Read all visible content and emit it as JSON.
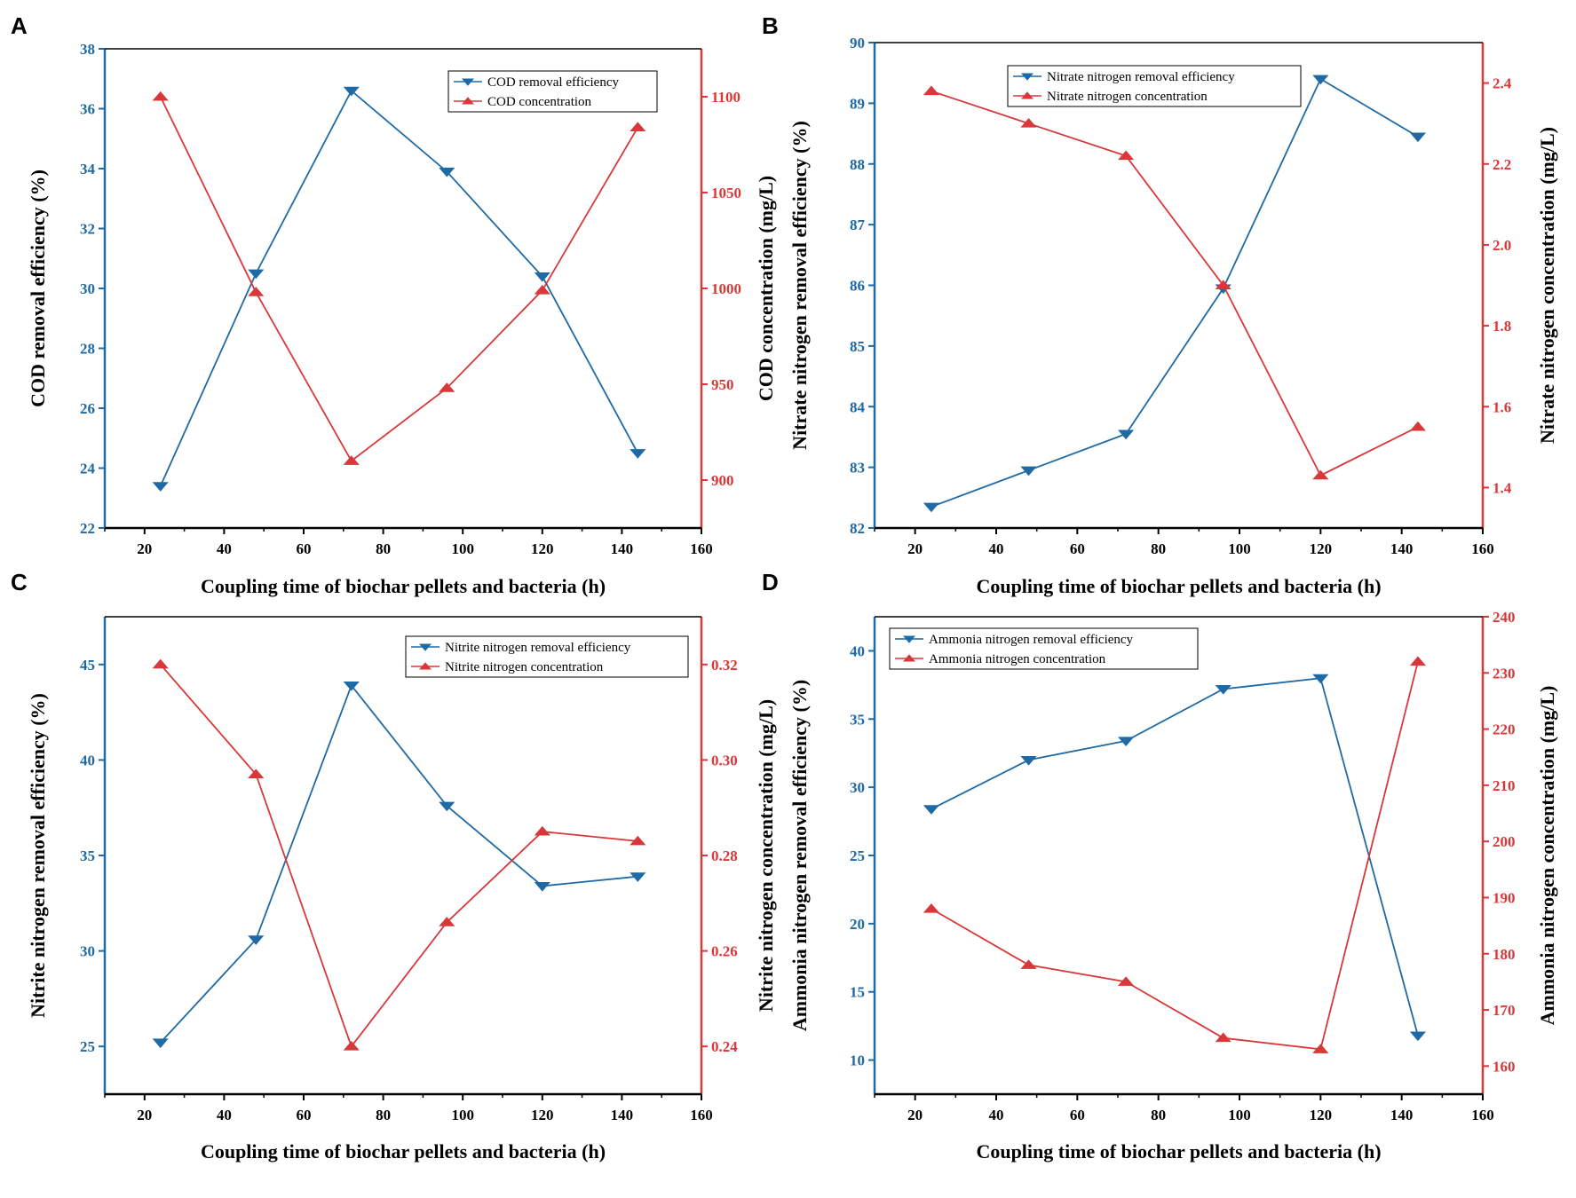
{
  "colors": {
    "left": "#1f6aa5",
    "right": "#d9383a",
    "axis": "#000000"
  },
  "chart_data": [
    {
      "panel": "A",
      "type": "line",
      "x": [
        24,
        48,
        72,
        96,
        120,
        144
      ],
      "xlim": [
        10,
        160
      ],
      "xticks": [
        20,
        40,
        60,
        80,
        100,
        120,
        140,
        160
      ],
      "xlabel": "Coupling time of biochar pellets and bacteria (h)",
      "ylabel_left": "COD removal efficiency (%)",
      "ylim_left": [
        22,
        38
      ],
      "yticks_left": [
        22,
        24,
        26,
        28,
        30,
        32,
        34,
        36,
        38
      ],
      "ylabel_right": "COD concentration (mg/L)",
      "ylim_right": [
        875,
        1125
      ],
      "yticks_right": [
        900,
        950,
        1000,
        1050,
        1100
      ],
      "legend_position": "top-right",
      "series": [
        {
          "name": "COD removal efficiency",
          "axis": "left",
          "marker": "down-triangle",
          "values": [
            23.4,
            30.5,
            36.6,
            33.9,
            30.4,
            24.5
          ]
        },
        {
          "name": "COD concentration",
          "axis": "right",
          "marker": "up-triangle",
          "values": [
            1100,
            998,
            910,
            948,
            999,
            1084
          ]
        }
      ]
    },
    {
      "panel": "B",
      "type": "line",
      "x": [
        24,
        48,
        72,
        96,
        120,
        144
      ],
      "xlim": [
        10,
        160
      ],
      "xticks": [
        20,
        40,
        60,
        80,
        100,
        120,
        140,
        160
      ],
      "xlabel": "Coupling time of biochar pellets and bacteria (h)",
      "ylabel_left": "Nitrate nitrogen removal efficiency (%)",
      "ylim_left": [
        82,
        90
      ],
      "yticks_left": [
        82,
        83,
        84,
        85,
        86,
        87,
        88,
        89,
        90
      ],
      "ylabel_right": "Nitrate nitrogen concentration (mg/L)",
      "ylim_right": [
        1.3,
        2.5
      ],
      "yticks_right": [
        1.4,
        1.6,
        1.8,
        2.0,
        2.2,
        2.4
      ],
      "legend_position": "top-right",
      "series": [
        {
          "name": "Nitrate nitrogen removal efficiency",
          "axis": "left",
          "marker": "down-triangle",
          "values": [
            82.35,
            82.95,
            83.55,
            85.95,
            89.4,
            88.45
          ]
        },
        {
          "name": "Nitrate nitrogen concentration",
          "axis": "right",
          "marker": "up-triangle",
          "values": [
            2.38,
            2.3,
            2.22,
            1.9,
            1.43,
            1.55
          ]
        }
      ]
    },
    {
      "panel": "C",
      "type": "line",
      "x": [
        24,
        48,
        72,
        96,
        120,
        144
      ],
      "xlim": [
        10,
        160
      ],
      "xticks": [
        20,
        40,
        60,
        80,
        100,
        120,
        140,
        160
      ],
      "xlabel": "Coupling time of biochar pellets and bacteria (h)",
      "ylabel_left": "Nitrite nitrogen removal efficiency (%)",
      "ylim_left": [
        22.5,
        47.5
      ],
      "yticks_left": [
        25,
        30,
        35,
        40,
        45
      ],
      "ylabel_right": "Nitrite nitrogen concentration (mg/L)",
      "ylim_right": [
        0.23,
        0.33
      ],
      "yticks_right": [
        0.24,
        0.26,
        0.28,
        0.3,
        0.32
      ],
      "legend_position": "top-right",
      "series": [
        {
          "name": "Nitrite nitrogen removal efficiency",
          "axis": "left",
          "marker": "down-triangle",
          "values": [
            25.2,
            30.6,
            43.9,
            37.6,
            33.4,
            33.9
          ]
        },
        {
          "name": "Nitrite nitrogen concentration",
          "axis": "right",
          "marker": "up-triangle",
          "values": [
            0.32,
            0.297,
            0.24,
            0.266,
            0.285,
            0.283
          ]
        }
      ]
    },
    {
      "panel": "D",
      "type": "line",
      "x": [
        24,
        48,
        72,
        96,
        120,
        144
      ],
      "xlim": [
        10,
        160
      ],
      "xticks": [
        20,
        40,
        60,
        80,
        100,
        120,
        140,
        160
      ],
      "xlabel": "Coupling time of biochar pellets and bacteria (h)",
      "ylabel_left": "Ammonia nitrogen removal efficiency (%)",
      "ylim_left": [
        7.5,
        42.5
      ],
      "yticks_left": [
        10,
        15,
        20,
        25,
        30,
        35,
        40
      ],
      "ylabel_right": "Ammonia nitrogen concentration (mg/L)",
      "ylim_right": [
        155,
        240
      ],
      "yticks_right": [
        160,
        170,
        180,
        190,
        200,
        210,
        220,
        230,
        240
      ],
      "legend_position": "top-left",
      "series": [
        {
          "name": "Ammonia nitrogen removal efficiency",
          "axis": "left",
          "marker": "down-triangle",
          "values": [
            28.4,
            32.0,
            33.4,
            37.2,
            38.0,
            11.8
          ]
        },
        {
          "name": "Ammonia nitrogen concentration",
          "axis": "right",
          "marker": "up-triangle",
          "values": [
            188,
            178,
            175,
            165,
            163,
            232
          ]
        }
      ]
    }
  ]
}
